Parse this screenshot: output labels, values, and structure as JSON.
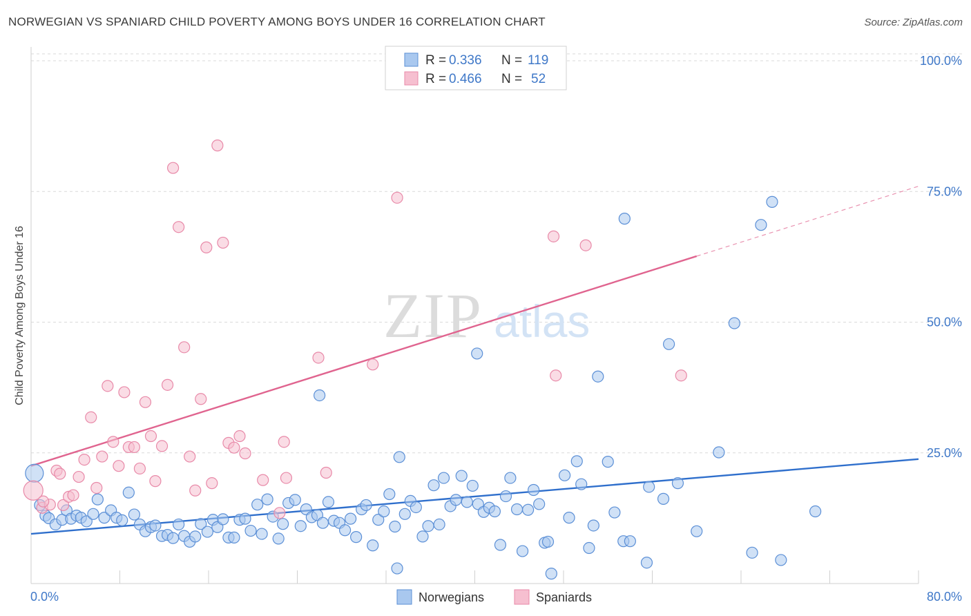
{
  "header": {
    "title": "NORWEGIAN VS SPANIARD CHILD POVERTY AMONG BOYS UNDER 16 CORRELATION CHART",
    "source": "Source: ZipAtlas.com"
  },
  "watermark": {
    "zip": "ZIP",
    "atlas": "atlas"
  },
  "legend_box": {
    "rows": [
      {
        "r_label": "R =",
        "r_value": "0.336",
        "n_label": "N =",
        "n_value": "119"
      },
      {
        "r_label": "R =",
        "r_value": "0.466",
        "n_label": "N =",
        "n_value": "52"
      }
    ]
  },
  "bottom_legend": [
    "Norwegians",
    "Spaniards"
  ],
  "colors": {
    "norwegian_fill": "#a9c8ef",
    "norwegian_stroke": "#5b8fd6",
    "norwegian_line": "#2f6fcc",
    "spaniard_fill": "#f6bfd0",
    "spaniard_stroke": "#e889a8",
    "spaniard_line": "#e0648f",
    "tick_text": "#3f78c8",
    "grid": "#d9d9d9"
  },
  "chart_data": {
    "type": "scatter",
    "title": "NORWEGIAN VS SPANIARD CHILD POVERTY AMONG BOYS UNDER 16 CORRELATION CHART",
    "xlabel": "",
    "ylabel": "Child Poverty Among Boys Under 16",
    "xlim": [
      0,
      80
    ],
    "ylim": [
      0,
      100
    ],
    "x_tick_labels": [
      "0.0%",
      "80.0%"
    ],
    "y_tick_labels": [
      "25.0%",
      "50.0%",
      "75.0%",
      "100.0%"
    ],
    "y_ticks": [
      25,
      50,
      75,
      100
    ],
    "grid": "horizontal dashed",
    "legend": "top-center",
    "series": [
      {
        "name": "Norwegians",
        "r": 0.336,
        "n": 119,
        "trend": {
          "x": [
            0,
            80
          ],
          "y": [
            9.5,
            23.8
          ],
          "dashed_from": null
        },
        "points": [
          [
            0.3,
            21.1
          ],
          [
            0.8,
            15.0
          ],
          [
            1.3,
            13.0
          ],
          [
            1.6,
            12.5
          ],
          [
            2.2,
            11.3
          ],
          [
            2.8,
            12.2
          ],
          [
            3.2,
            14.0
          ],
          [
            3.6,
            12.4
          ],
          [
            4.1,
            13.0
          ],
          [
            4.5,
            12.6
          ],
          [
            5.0,
            11.9
          ],
          [
            5.6,
            13.3
          ],
          [
            6.0,
            16.1
          ],
          [
            6.6,
            12.6
          ],
          [
            7.2,
            14.0
          ],
          [
            7.7,
            12.6
          ],
          [
            8.2,
            12.1
          ],
          [
            8.8,
            17.4
          ],
          [
            9.3,
            13.2
          ],
          [
            9.8,
            11.3
          ],
          [
            10.3,
            10.0
          ],
          [
            10.8,
            10.8
          ],
          [
            11.2,
            11.1
          ],
          [
            11.8,
            9.1
          ],
          [
            12.3,
            9.3
          ],
          [
            12.8,
            8.7
          ],
          [
            13.3,
            11.3
          ],
          [
            13.8,
            9.1
          ],
          [
            14.3,
            8.0
          ],
          [
            14.8,
            9.0
          ],
          [
            15.3,
            11.4
          ],
          [
            15.9,
            9.9
          ],
          [
            16.4,
            12.2
          ],
          [
            16.8,
            10.8
          ],
          [
            17.3,
            12.3
          ],
          [
            17.8,
            8.8
          ],
          [
            18.3,
            8.8
          ],
          [
            18.8,
            12.2
          ],
          [
            19.3,
            12.4
          ],
          [
            19.8,
            10.1
          ],
          [
            20.4,
            15.1
          ],
          [
            20.8,
            9.5
          ],
          [
            21.3,
            16.1
          ],
          [
            21.8,
            12.8
          ],
          [
            22.3,
            8.6
          ],
          [
            22.7,
            11.4
          ],
          [
            23.2,
            15.4
          ],
          [
            23.8,
            16.0
          ],
          [
            24.3,
            11.0
          ],
          [
            24.8,
            14.2
          ],
          [
            25.3,
            12.7
          ],
          [
            25.8,
            13.1
          ],
          [
            26.3,
            11.6
          ],
          [
            26.8,
            15.6
          ],
          [
            27.3,
            12.0
          ],
          [
            27.8,
            11.6
          ],
          [
            28.3,
            10.2
          ],
          [
            28.8,
            12.4
          ],
          [
            29.3,
            8.9
          ],
          [
            29.8,
            14.2
          ],
          [
            30.2,
            15.0
          ],
          [
            30.8,
            7.3
          ],
          [
            31.3,
            12.2
          ],
          [
            31.8,
            13.8
          ],
          [
            32.3,
            17.1
          ],
          [
            32.8,
            10.9
          ],
          [
            33.2,
            24.2
          ],
          [
            33.7,
            13.3
          ],
          [
            34.2,
            15.8
          ],
          [
            34.7,
            14.6
          ],
          [
            35.3,
            9.0
          ],
          [
            35.8,
            11.0
          ],
          [
            36.3,
            18.8
          ],
          [
            36.8,
            11.3
          ],
          [
            37.2,
            20.2
          ],
          [
            37.8,
            14.8
          ],
          [
            38.3,
            16.0
          ],
          [
            38.8,
            20.6
          ],
          [
            39.3,
            15.6
          ],
          [
            39.8,
            18.7
          ],
          [
            40.3,
            15.2
          ],
          [
            40.8,
            13.7
          ],
          [
            41.3,
            14.5
          ],
          [
            41.8,
            13.8
          ],
          [
            42.3,
            7.4
          ],
          [
            42.8,
            16.7
          ],
          [
            43.2,
            20.2
          ],
          [
            43.8,
            14.2
          ],
          [
            44.3,
            6.2
          ],
          [
            44.8,
            14.1
          ],
          [
            45.3,
            17.9
          ],
          [
            45.8,
            15.2
          ],
          [
            46.3,
            7.8
          ],
          [
            46.6,
            8.0
          ],
          [
            46.9,
            1.9
          ],
          [
            48.1,
            20.7
          ],
          [
            48.5,
            12.6
          ],
          [
            49.2,
            23.4
          ],
          [
            49.6,
            19.0
          ],
          [
            50.3,
            6.8
          ],
          [
            50.7,
            11.1
          ],
          [
            51.1,
            39.6
          ],
          [
            52.0,
            23.3
          ],
          [
            52.6,
            13.6
          ],
          [
            53.4,
            8.1
          ],
          [
            54.0,
            8.1
          ],
          [
            55.5,
            4.0
          ],
          [
            55.7,
            18.5
          ],
          [
            57.0,
            16.2
          ],
          [
            57.5,
            45.8
          ],
          [
            58.3,
            19.2
          ],
          [
            62.0,
            25.1
          ],
          [
            63.4,
            49.8
          ],
          [
            65.0,
            5.9
          ],
          [
            65.8,
            68.6
          ],
          [
            67.6,
            4.5
          ],
          [
            70.7,
            13.8
          ],
          [
            66.8,
            73.0
          ],
          [
            53.5,
            69.8
          ],
          [
            40.2,
            44.0
          ],
          [
            26.0,
            36.0
          ],
          [
            33.0,
            2.9
          ],
          [
            60.0,
            10.0
          ]
        ]
      },
      {
        "name": "Spaniards",
        "r": 0.466,
        "n": 52,
        "trend": {
          "x": [
            0,
            80
          ],
          "y": [
            22.5,
            76.0
          ],
          "dashed_from": 60
        },
        "points": [
          [
            0.2,
            17.8
          ],
          [
            1.0,
            14.5
          ],
          [
            1.7,
            15.1
          ],
          [
            2.3,
            21.6
          ],
          [
            2.6,
            21.0
          ],
          [
            2.9,
            15.0
          ],
          [
            3.4,
            16.6
          ],
          [
            3.8,
            16.9
          ],
          [
            4.3,
            20.4
          ],
          [
            4.8,
            23.7
          ],
          [
            5.4,
            31.8
          ],
          [
            5.9,
            18.3
          ],
          [
            6.4,
            24.3
          ],
          [
            6.9,
            37.8
          ],
          [
            7.4,
            27.1
          ],
          [
            7.9,
            22.5
          ],
          [
            8.4,
            36.6
          ],
          [
            8.8,
            26.1
          ],
          [
            9.3,
            26.1
          ],
          [
            9.8,
            22.0
          ],
          [
            10.3,
            34.7
          ],
          [
            10.8,
            28.2
          ],
          [
            11.2,
            19.6
          ],
          [
            11.8,
            26.3
          ],
          [
            12.3,
            38.0
          ],
          [
            12.8,
            79.5
          ],
          [
            13.3,
            68.2
          ],
          [
            13.8,
            45.2
          ],
          [
            14.3,
            24.3
          ],
          [
            14.8,
            17.8
          ],
          [
            15.3,
            35.3
          ],
          [
            15.8,
            64.3
          ],
          [
            16.3,
            19.2
          ],
          [
            16.8,
            83.8
          ],
          [
            17.3,
            65.2
          ],
          [
            17.8,
            26.9
          ],
          [
            18.3,
            26.0
          ],
          [
            18.8,
            28.2
          ],
          [
            19.3,
            24.9
          ],
          [
            20.9,
            19.8
          ],
          [
            22.4,
            13.5
          ],
          [
            22.8,
            27.1
          ],
          [
            23.0,
            20.2
          ],
          [
            25.9,
            43.2
          ],
          [
            26.6,
            21.2
          ],
          [
            30.8,
            41.9
          ],
          [
            33.0,
            73.8
          ],
          [
            47.1,
            66.4
          ],
          [
            47.3,
            39.8
          ],
          [
            50.0,
            64.7
          ],
          [
            58.6,
            39.8
          ],
          [
            1.1,
            15.7
          ]
        ]
      }
    ]
  }
}
